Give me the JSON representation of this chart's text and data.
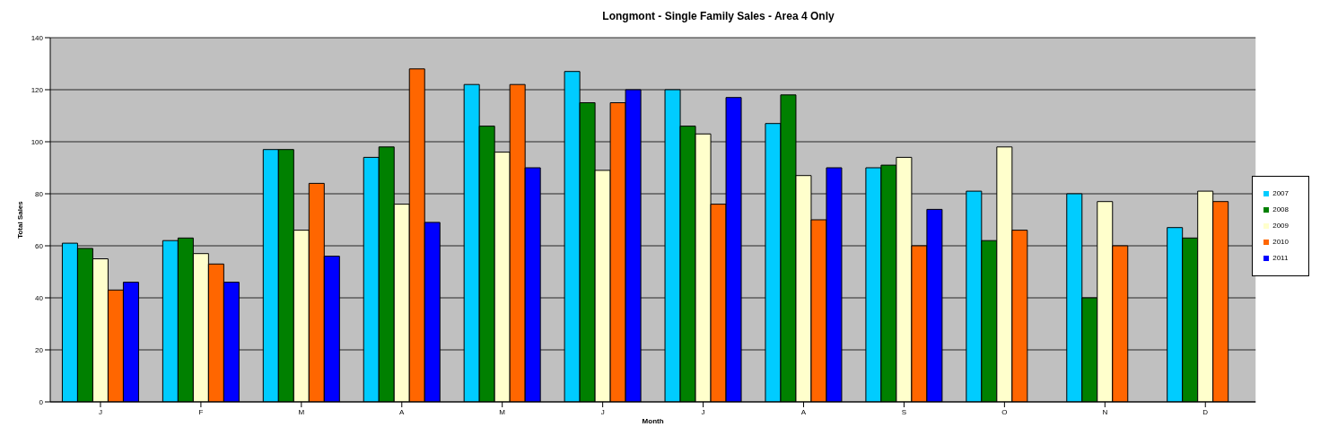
{
  "chart_data": {
    "type": "bar",
    "title": "Longmont - Single Family Sales - Area 4 Only",
    "xlabel": "Month",
    "ylabel": "Total Sales",
    "categories": [
      "J",
      "F",
      "M",
      "A",
      "M",
      "J",
      "J",
      "A",
      "S",
      "O",
      "N",
      "D"
    ],
    "series": [
      {
        "name": "2007",
        "color": "#00ccff",
        "values": [
          61,
          62,
          97,
          94,
          122,
          127,
          120,
          107,
          90,
          81,
          80,
          67
        ]
      },
      {
        "name": "2008",
        "color": "#008000",
        "values": [
          59,
          63,
          97,
          98,
          106,
          115,
          106,
          118,
          91,
          62,
          40,
          63
        ]
      },
      {
        "name": "2009",
        "color": "#ffffcc",
        "values": [
          55,
          57,
          66,
          76,
          96,
          89,
          103,
          87,
          94,
          98,
          77,
          81
        ]
      },
      {
        "name": "2010",
        "color": "#ff6600",
        "values": [
          43,
          53,
          84,
          128,
          122,
          115,
          76,
          70,
          60,
          66,
          60,
          77
        ]
      },
      {
        "name": "2011",
        "color": "#0000ff",
        "values": [
          46,
          46,
          56,
          69,
          90,
          120,
          117,
          90,
          74,
          null,
          null,
          null
        ]
      }
    ],
    "ylim": [
      0,
      140
    ],
    "yticks": [
      0,
      20,
      40,
      60,
      80,
      100,
      120,
      140
    ],
    "grid": "y",
    "legend": "right"
  }
}
